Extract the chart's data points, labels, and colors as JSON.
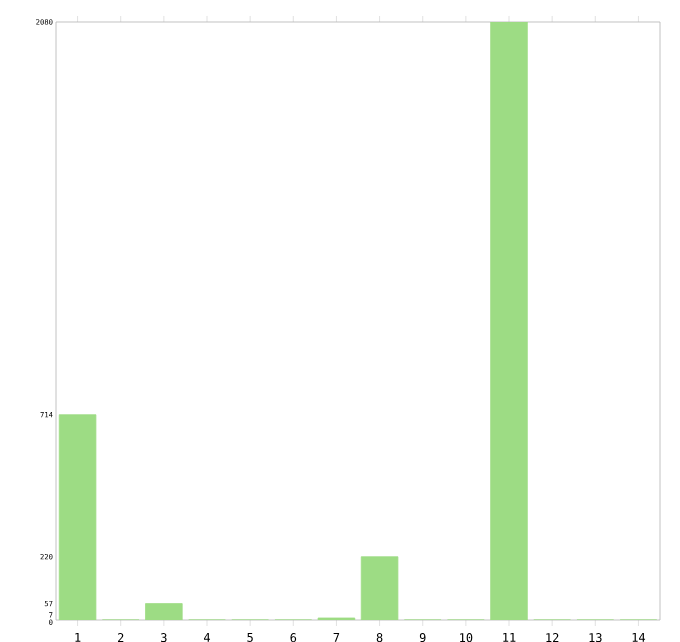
{
  "chart_data": {
    "type": "bar",
    "categories": [
      "1",
      "2",
      "3",
      "4",
      "5",
      "6",
      "7",
      "8",
      "9",
      "10",
      "11",
      "12",
      "13",
      "14"
    ],
    "values": [
      714,
      0,
      57,
      0,
      0,
      0,
      7,
      220,
      0,
      0,
      2080,
      0,
      0,
      0
    ],
    "color": "#9ddc84",
    "ylim": [
      0,
      2080
    ],
    "yticks": [
      0,
      7,
      57,
      220,
      714,
      2080
    ],
    "grid": false
  }
}
